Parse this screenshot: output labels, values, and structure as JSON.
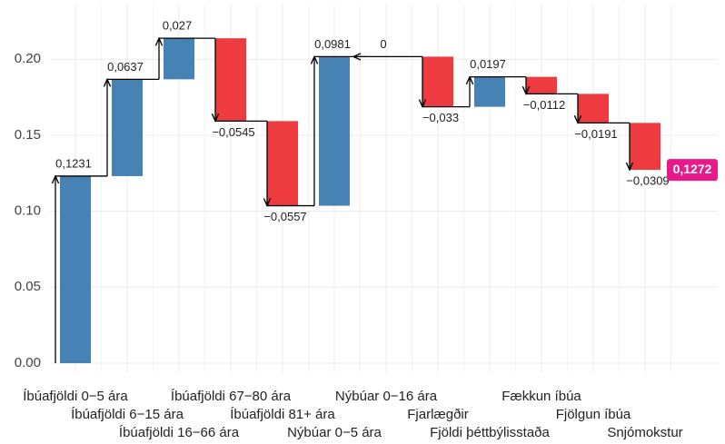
{
  "chart_data": {
    "type": "waterfall",
    "categories": [
      "Íbúafjöldi 0−5 ára",
      "Íbúafjöldi 6−15 ára",
      "Íbúafjöldi 16−66 ára",
      "Íbúafjöldi 67−80 ára",
      "Íbúafjöldi 81+ ára",
      "Nýbúar 0−5 ára",
      "Nýbúar 0−16 ára",
      "Fjarlægðir",
      "Fjöldi þéttbýlisstaða",
      "Fækkun íbúa",
      "Fjölgun íbúa",
      "Snjómokstur"
    ],
    "values": [
      0.1231,
      0.0637,
      0.027,
      -0.0545,
      -0.0557,
      0.0981,
      0,
      -0.033,
      0.0197,
      -0.0112,
      -0.0191,
      -0.0309
    ],
    "value_labels": [
      "0,1231",
      "0,0637",
      "0,027",
      "−0,0545",
      "−0,0557",
      "0,0981",
      "0",
      "−0,033",
      "0,0197",
      "−0,0112",
      "−0,0191",
      "−0,0309"
    ],
    "total": 0.1272,
    "total_label": "0,1272",
    "total_color": "#e8198b",
    "positive_color": "#4682b4",
    "negative_color": "#ee3b3f",
    "ylim": [
      -0.006,
      0.236
    ],
    "yticks": [
      {
        "value": 0,
        "label": "0.00"
      },
      0.05,
      {
        "value": 0.1,
        "label": "0.10"
      },
      0.15,
      {
        "value": 0.2,
        "label": "0.20"
      }
    ],
    "grid": true
  }
}
